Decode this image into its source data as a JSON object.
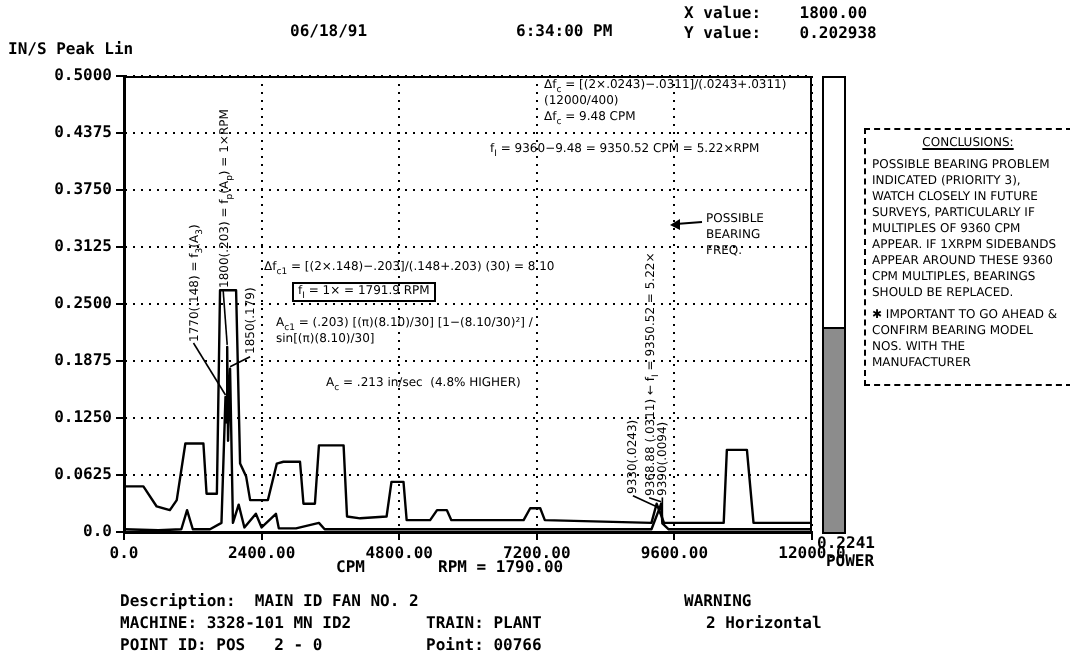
{
  "chart_data": [
    {
      "type": "line",
      "ylabel": "IN/S Peak Lin",
      "xlabel": "CPM",
      "series": [
        {
          "color": "#000000",
          "x": [
            0,
            338,
            570,
            800,
            920,
            1070,
            1385,
            1440,
            1620,
            1675,
            1955,
            2025,
            2130,
            2200,
            2510,
            2665,
            2780,
            3070,
            3130,
            3330,
            3400,
            3830,
            3890,
            4120,
            4580,
            4665,
            4875,
            4930,
            5340,
            5460,
            5630,
            5710,
            6970,
            7085,
            7260,
            7340,
            9200,
            9290,
            9420,
            10460,
            10515,
            10865,
            10980,
            12000
          ],
          "values": [
            0.05,
            0.05,
            0.028,
            0.024,
            0.035,
            0.097,
            0.097,
            0.042,
            0.042,
            0.265,
            0.265,
            0.075,
            0.061,
            0.035,
            0.035,
            0.075,
            0.077,
            0.077,
            0.031,
            0.031,
            0.095,
            0.095,
            0.017,
            0.015,
            0.017,
            0.055,
            0.055,
            0.013,
            0.013,
            0.024,
            0.024,
            0.013,
            0.013,
            0.026,
            0.026,
            0.013,
            0.01,
            0.031,
            0.01,
            0.01,
            0.09,
            0.09,
            0.01,
            0.01
          ]
        },
        {
          "color": "#000000",
          "x": [
            0,
            600,
            1000,
            1100,
            1200,
            1500,
            1700,
            1770,
            1790,
            1800,
            1815,
            1850,
            1900,
            2000,
            2100,
            2300,
            2400,
            2650,
            2700,
            3000,
            3400,
            3500,
            5000,
            9200,
            9330,
            9368.88,
            9390,
            9500,
            12000
          ],
          "values": [
            0.003,
            0.002,
            0.003,
            0.024,
            0.003,
            0.003,
            0.01,
            0.148,
            0.12,
            0.203,
            0.1,
            0.179,
            0.01,
            0.03,
            0.005,
            0.02,
            0.005,
            0.02,
            0.004,
            0.004,
            0.01,
            0.003,
            0.003,
            0.003,
            0.0243,
            0.0311,
            0.0094,
            0.003,
            0.003
          ]
        }
      ],
      "xlim": [
        0,
        12000
      ],
      "xticks": [
        {
          "value": 0,
          "label": "0.0"
        },
        {
          "value": 2400,
          "label": "2400.00"
        },
        {
          "value": 4800,
          "label": "4800.00"
        },
        {
          "value": 7200,
          "label": "7200.00"
        },
        {
          "value": 9600,
          "label": "9600.00"
        },
        {
          "value": 12000,
          "label": "12000.0"
        }
      ],
      "ylim": [
        0,
        0.5
      ],
      "yticks": [
        {
          "value": 0,
          "label": "0.0"
        },
        {
          "value": 0.0625,
          "label": "0.0625"
        },
        {
          "value": 0.125,
          "label": "0.1250"
        },
        {
          "value": 0.1875,
          "label": "0.1875"
        },
        {
          "value": 0.25,
          "label": "0.2500"
        },
        {
          "value": 0.3125,
          "label": "0.3125"
        },
        {
          "value": 0.375,
          "label": "0.3750"
        },
        {
          "value": 0.4375,
          "label": "0.4375"
        },
        {
          "value": 0.5,
          "label": "0.5000"
        }
      ],
      "grid": true,
      "legend": false,
      "marker": "none",
      "line_style": "solid",
      "annotations": [
        "06/18/91",
        "6:34:00 PM",
        "X value:    1800.00",
        "Y value:    0.202938",
        "RPM = 1790.00",
        "Description:  MAIN ID FAN NO. 2",
        "MACHINE: 3328-101 MN ID2",
        "TRAIN: PLANT",
        "POINT ID: POS   2 - 0",
        "Point: 00766",
        "WARNING",
        "2 Horizontal",
        "CONCLUSIONS:",
        "POSSIBLE BEARING PROBLEM INDICATED (PRIORITY 3), WATCH CLOSELY IN FUTURE SURVEYS, PARTICULARLY IF MULTIPLES OF 9360 CPM APPEAR. IF 1XRPM SIDEBANDS APPEAR AROUND THESE 9360 CPM MULTIPLES, BEARINGS SHOULD BE REPLACED.",
        "✱ IMPORTANT TO GO AHEAD & CONFIRM BEARING MODEL NOS. WITH THE MANUFACTURER",
        {
          "text": "1770(.148) = f$_{3}$(A$_{3}$)",
          "x": 1770,
          "y": 0.148
        },
        {
          "text": "1800(.203) = f$_{p}$(A$_{p}$) = 1×RPM",
          "x": 1800,
          "y": 0.203
        },
        {
          "text": "1850(.179)",
          "x": 1850,
          "y": 0.179
        },
        "Δf$_{c1}$ = [(2×.148)−.203]/(.148+.203) (30) = 8.10",
        "f$_{I}$ = 1× = 1791.9 RPM",
        "A$_{c1}$ = (.203) [(π)(8.10)/30] [1−(8.10/30)²] / sin[(π)(8.10)/30]",
        "A$_{c}$ = .213 in/sec  (4.8% HIGHER)",
        "Δf$_{c}$ = [(2×.0243)−.0311]/(.0243+.0311) (12000/400)",
        "Δf$_{c}$ = 9.48 CPM",
        "f$_{I}$ = 9360−9.48 = 9350.52 CPM = 5.22×RPM",
        "POSSIBLE BEARING FREQ.",
        {
          "text": "9330(.0243)",
          "x": 9330,
          "y": 0.0243
        },
        {
          "text": "9368.88 (.0311) ← f$_{I}$ = 9350.52 = 5.22×",
          "x": 9368.88,
          "y": 0.0311
        },
        {
          "text": "9390(.0094)",
          "x": 9390,
          "y": 0.0094
        }
      ]
    },
    {
      "type": "bar",
      "categories": [
        "POWER"
      ],
      "values": [
        0.2241
      ],
      "color": "#8c8c8c",
      "ylim": [
        0,
        0.5
      ],
      "data_labels": true,
      "tick_labels": "x"
    }
  ]
}
